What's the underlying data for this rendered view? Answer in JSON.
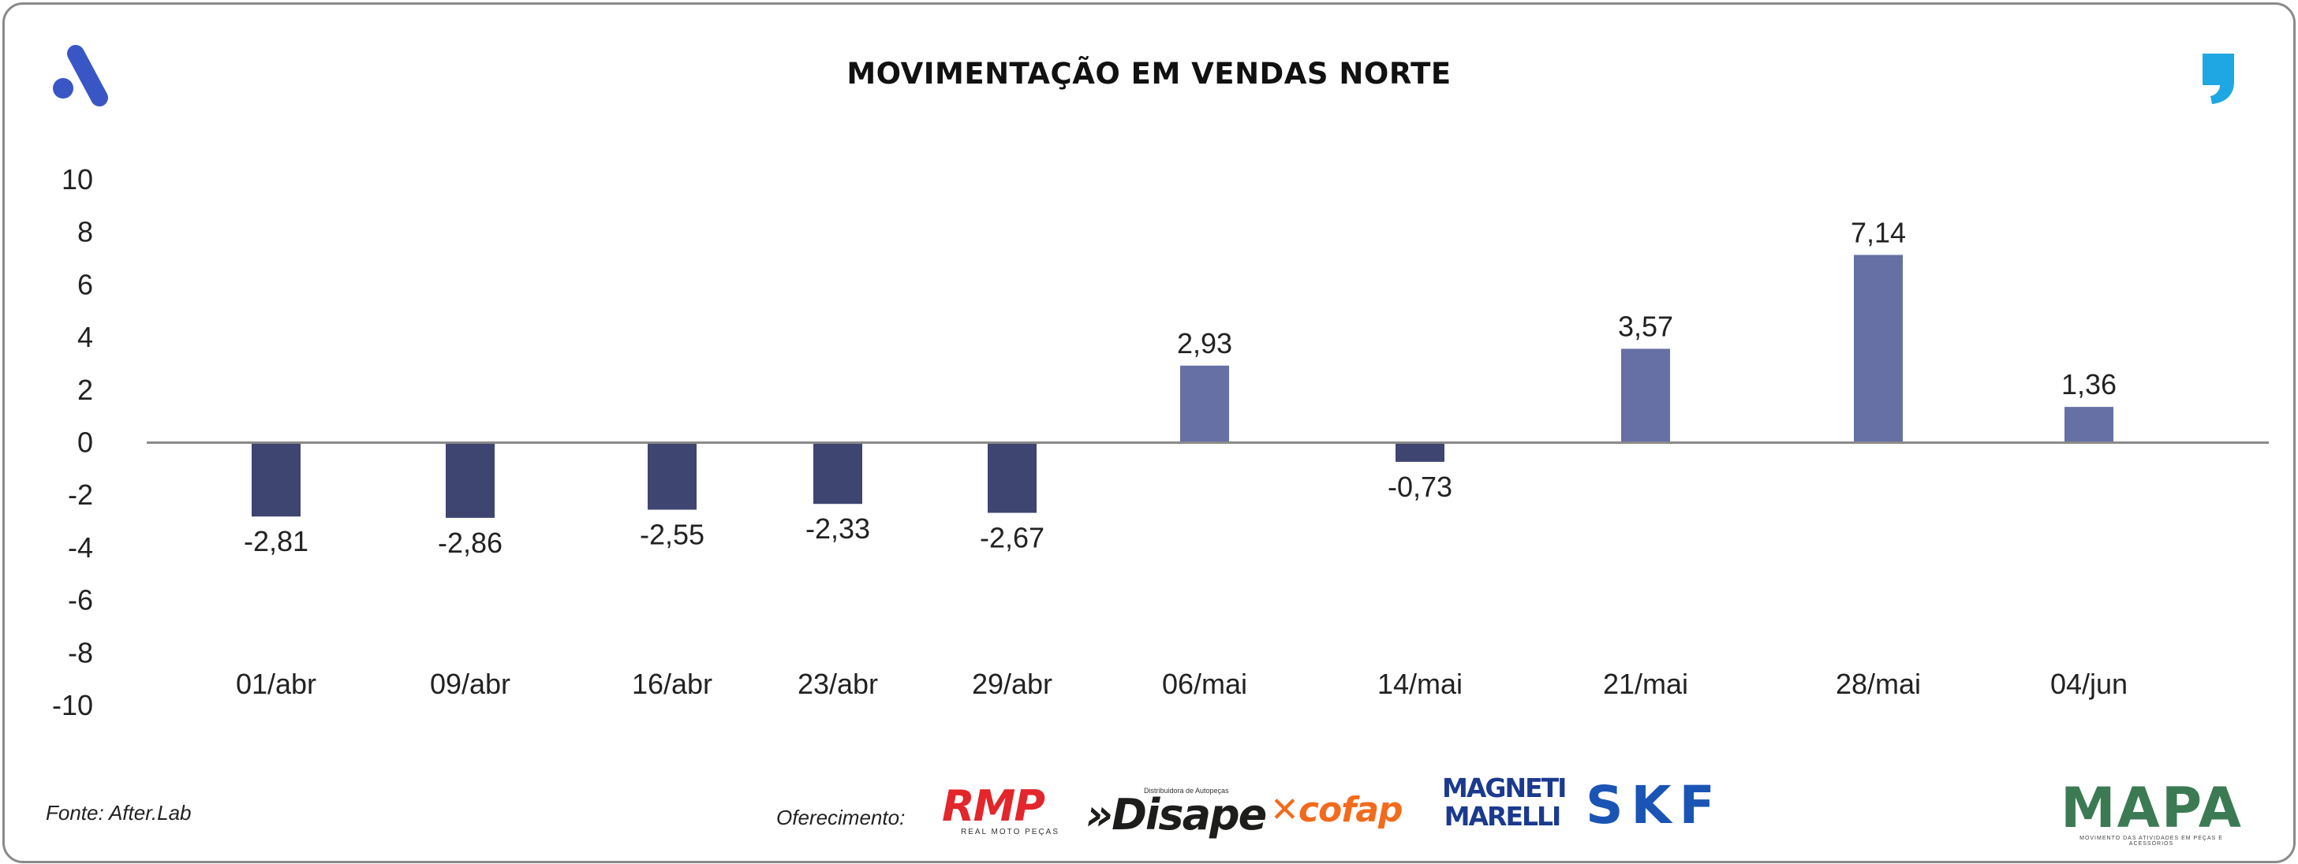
{
  "header": {
    "title": "MOVIMENTAÇÃO EM VENDAS NORTE",
    "brand_icon": "brand-logo-icon",
    "quote_icon": "comma-quote-icon"
  },
  "colors": {
    "positive_bar": "#6670a5",
    "negative_bar": "#3e4570",
    "axis_line": "#8a8a8a",
    "frame_border": "#8a8a8a",
    "brand_blue": "#3a56c5",
    "quote_blue": "#1fa7e3"
  },
  "chart_data": {
    "type": "bar",
    "title": "MOVIMENTAÇÃO EM VENDAS NORTE",
    "categories": [
      "01/abr",
      "09/abr",
      "16/abr",
      "23/abr",
      "29/abr",
      "06/mai",
      "14/mai",
      "21/mai",
      "28/mai",
      "04/jun"
    ],
    "values": [
      -2.81,
      -2.86,
      -2.55,
      -2.33,
      -2.67,
      2.93,
      -0.73,
      3.57,
      7.14,
      1.36
    ],
    "data_labels": [
      "-2,81",
      "-2,86",
      "-2,55",
      "-2,33",
      "-2,67",
      "2,93",
      "-0,73",
      "3,57",
      "7,14",
      "1,36"
    ],
    "yticks": [
      10,
      8,
      6,
      4,
      2,
      0,
      -2,
      -4,
      -6,
      -8,
      -10
    ],
    "ytick_labels": [
      "10",
      "8",
      "6",
      "4",
      "2",
      "0",
      "-2",
      "-4",
      "-6",
      "-8",
      "-10"
    ],
    "ylim": [
      -10,
      10
    ],
    "xlabel": "",
    "ylabel": "",
    "grid": false,
    "legend": false
  },
  "footer": {
    "source": "Fonte: After.Lab",
    "sponsor_label": "Oferecimento:",
    "sponsors": {
      "rmp": "RMP",
      "rmp_sub": "REAL MOTO PEÇAS",
      "disape_small": "Distribuidora de Autopeças",
      "disape": "»Disape",
      "cofap": "✕cofap",
      "magneti_1": "MAGNETI",
      "magneti_2": "MARELLI",
      "skf": "SKF",
      "mapa": "MAPA",
      "mapa_sub": "MOVIMENTO DAS ATIVIDADES EM PEÇAS E ACESSÓRIOS"
    }
  }
}
